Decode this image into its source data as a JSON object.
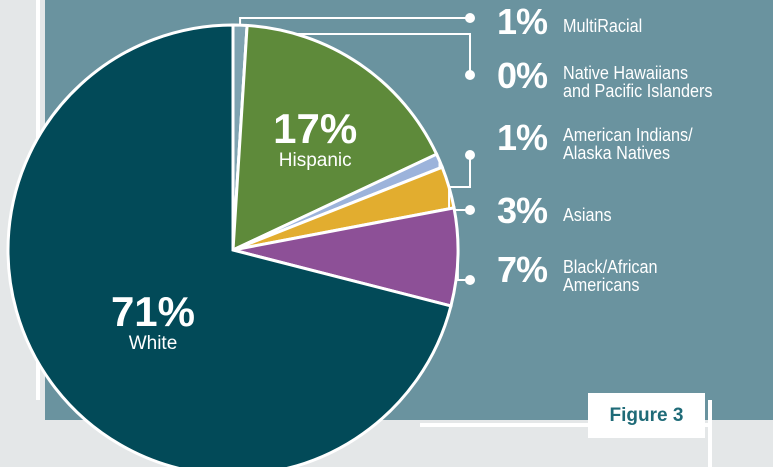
{
  "chart_data": {
    "type": "pie",
    "categories": [
      "MultiRacial",
      "Native Hawaiians\nand Pacific Islanders",
      "Hispanic",
      "American Indians/\nAlaska Natives",
      "Asians",
      "Black/African\nAmericans",
      "White"
    ],
    "values": [
      1,
      0,
      17,
      1,
      3,
      7,
      71
    ],
    "value_labels": [
      "1%",
      "0%",
      "17%",
      "1%",
      "3%",
      "7%",
      "71%"
    ],
    "colors": [
      "#7fa3b1",
      "#c9d6dc",
      "#5e8a3a",
      "#9cb3db",
      "#e2ad2f",
      "#8d5097",
      "#024a58"
    ],
    "figure_label": "Figure 3"
  }
}
